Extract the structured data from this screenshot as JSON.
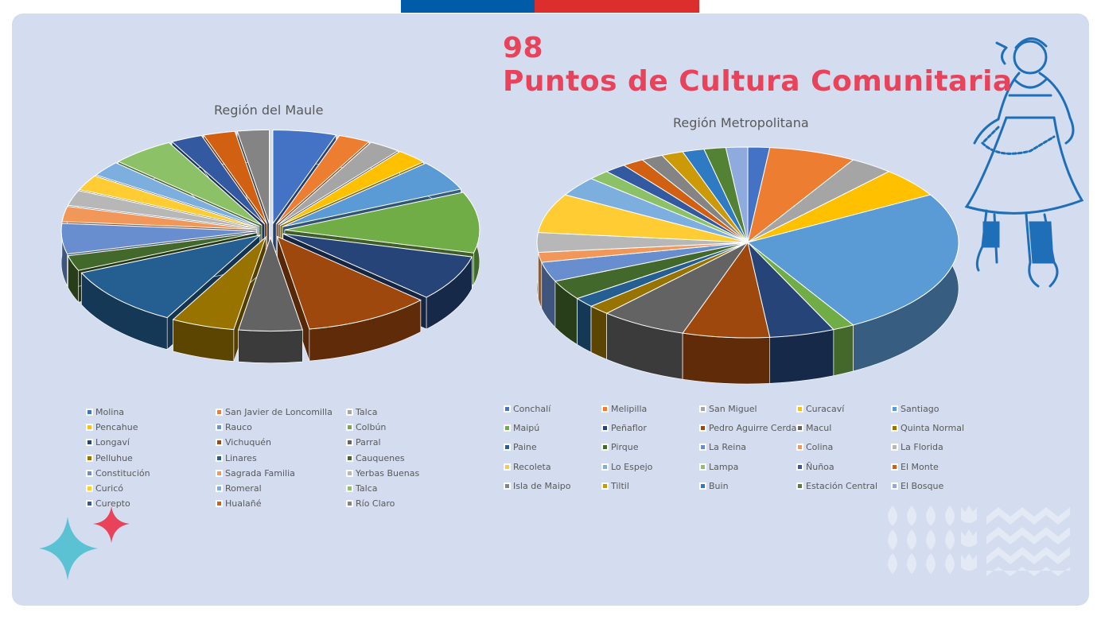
{
  "header": {
    "count": "98",
    "title": "Puntos de Cultura Comunitaria"
  },
  "colors": {
    "accent": "#e8435a",
    "bar_blue": "#005ca9",
    "bar_red": "#dd2e2e",
    "card_bg": "#d3ddef"
  },
  "chart_data": [
    {
      "type": "pie",
      "title": "Región del Maule",
      "style": "3d-exploded",
      "legend_position": "bottom",
      "categories": [
        "Molina",
        "San Javier de Loncomilla",
        "Talca",
        "Pencahue",
        "Rauco",
        "Colbún",
        "Longaví",
        "Vichuquén",
        "Parral",
        "Pelluhue",
        "Linares",
        "Cauquenes",
        "Constitución",
        "Sagrada Familia",
        "Yerbas Buenas",
        "Curicó",
        "Romeral",
        "Talca",
        "Curepto",
        "Hualañé",
        "Río Claro"
      ],
      "values": [
        2,
        1,
        1,
        1,
        2,
        4,
        3,
        4,
        2,
        2,
        4,
        1,
        2,
        1,
        1,
        1,
        1,
        2,
        1,
        1,
        1
      ],
      "colors": [
        "#4472c4",
        "#ed7d31",
        "#a5a5a5",
        "#ffc000",
        "#5b9bd5",
        "#70ad47",
        "#264478",
        "#9e480e",
        "#636363",
        "#997300",
        "#255e91",
        "#43682b",
        "#698ed0",
        "#f1975a",
        "#b7b7b7",
        "#ffcd33",
        "#7cafdd",
        "#8cc168",
        "#335aa1",
        "#d26012",
        "#848484"
      ]
    },
    {
      "type": "pie",
      "title": "Región Metropolitana",
      "style": "3d",
      "legend_position": "bottom",
      "categories": [
        "Conchalí",
        "Melipilla",
        "San Miguel",
        "Curacaví",
        "Santiago",
        "Maipú",
        "Peñaflor",
        "Pedro Aguirre Cerda",
        "Macul",
        "Quinta Normal",
        "Paine",
        "Pirque",
        "La Reina",
        "Colina",
        "La Florida",
        "Recoleta",
        "Lo Espejo",
        "Lampa",
        "Ñuñoa",
        "El Monte",
        "Isla de Maipo",
        "Tiltil",
        "Buin",
        "Estación Central",
        "El Bosque"
      ],
      "values": [
        1,
        4,
        2,
        3,
        15,
        1,
        3,
        4,
        4,
        1,
        1,
        2,
        2,
        1,
        2,
        4,
        2,
        1,
        1,
        1,
        1,
        1,
        1,
        1,
        1
      ],
      "colors": [
        "#4472c4",
        "#ed7d31",
        "#a5a5a5",
        "#ffc000",
        "#5b9bd5",
        "#70ad47",
        "#264478",
        "#9e480e",
        "#636363",
        "#997300",
        "#255e91",
        "#43682b",
        "#698ed0",
        "#f1975a",
        "#b7b7b7",
        "#ffcd33",
        "#7cafdd",
        "#8cc168",
        "#335aa1",
        "#d26012",
        "#848484",
        "#cc9a06",
        "#2e7bc4",
        "#548235",
        "#8faadc"
      ]
    }
  ]
}
